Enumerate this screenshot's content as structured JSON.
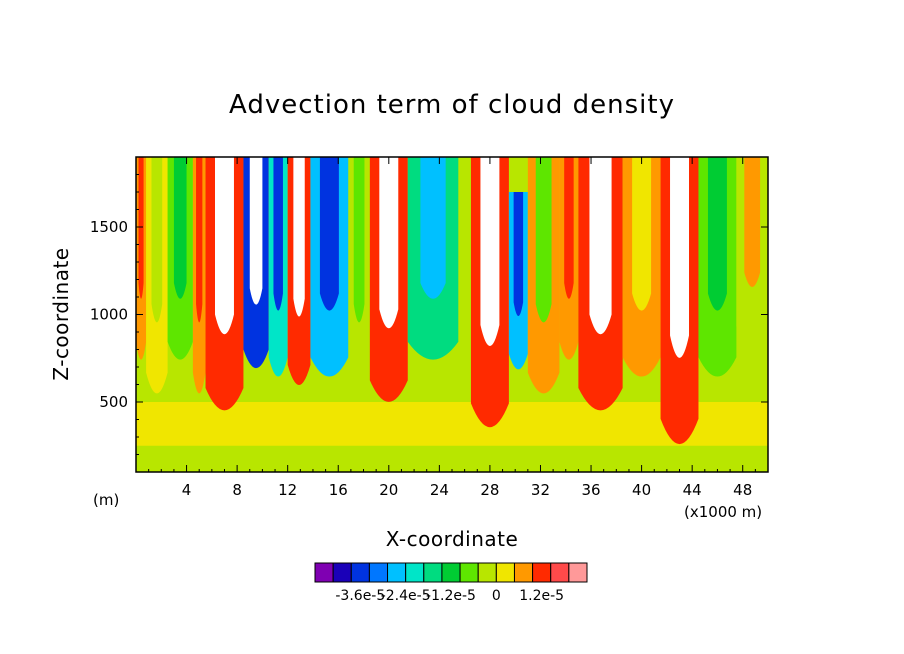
{
  "chart_data": {
    "type": "heatmap",
    "title": "Advection term of cloud density",
    "xlabel": "X-coordinate",
    "ylabel": "Z-coordinate",
    "x_unit_left": "(m)",
    "x_unit_right": "(x1000 m)",
    "xlim": [
      0,
      50
    ],
    "ylim": [
      100,
      1900
    ],
    "x_ticks": [
      4,
      8,
      12,
      16,
      20,
      24,
      28,
      32,
      36,
      40,
      44,
      48
    ],
    "x_tick_labels": [
      "4",
      "8",
      "12",
      "16",
      "20",
      "24",
      "28",
      "32",
      "36",
      "40",
      "44",
      "48"
    ],
    "y_ticks": [
      500,
      1000,
      1500
    ],
    "y_tick_labels": [
      "500",
      "1000",
      "1500"
    ],
    "colorbar": {
      "colors": [
        "#7f00b2",
        "#1a00b8",
        "#0033e0",
        "#0077ff",
        "#00c0ff",
        "#00e5c8",
        "#00dc80",
        "#00cc33",
        "#5ee600",
        "#b8e600",
        "#f0e600",
        "#ff9900",
        "#ff2a00",
        "#ff4a4a",
        "#ff9999"
      ],
      "labels": [
        "-3.6e-5",
        "-2.4e-5",
        "-1.2e-5",
        "0",
        "1.2e-5"
      ],
      "label_values": [
        -3.6e-05,
        -2.4e-05,
        -1.2e-05,
        0,
        1.2e-05
      ],
      "min": -4.8e-05,
      "max": 2.4e-05
    },
    "columns": [
      {
        "x": [
          0,
          0.8
        ],
        "color": "#ff9900",
        "core": "#ff2a00",
        "z_top": 1900,
        "z_bottom": 700
      },
      {
        "x": [
          0.8,
          2.5
        ],
        "color": "#f0e600",
        "core": "#b8e600",
        "z_top": 1900,
        "z_bottom": 500
      },
      {
        "x": [
          2.5,
          4.5
        ],
        "color": "#5ee600",
        "core": "#00cc33",
        "z_top": 1900,
        "z_bottom": 700
      },
      {
        "x": [
          4.5,
          5.5
        ],
        "color": "#ff9900",
        "core": "#ff2a00",
        "z_top": 1900,
        "z_bottom": 500
      },
      {
        "x": [
          5.5,
          8.5
        ],
        "color": "#ff2a00",
        "core": "#ffffff",
        "z_top": 1900,
        "z_bottom": 400
      },
      {
        "x": [
          8.5,
          10.5
        ],
        "color": "#0033e0",
        "core": "#ffffff",
        "z_top": 1900,
        "z_bottom": 650
      },
      {
        "x": [
          10.5,
          12.0
        ],
        "color": "#00e5c8",
        "core": "#0033e0",
        "z_top": 1900,
        "z_bottom": 600
      },
      {
        "x": [
          12.0,
          13.8
        ],
        "color": "#ff2a00",
        "core": "#ffffff",
        "z_top": 1900,
        "z_bottom": 550
      },
      {
        "x": [
          13.8,
          16.8
        ],
        "color": "#00c0ff",
        "core": "#0033e0",
        "z_top": 1900,
        "z_bottom": 600
      },
      {
        "x": [
          16.8,
          18.5
        ],
        "color": "#b8e600",
        "core": "#5ee600",
        "z_top": 1900,
        "z_bottom": 500
      },
      {
        "x": [
          18.5,
          21.5
        ],
        "color": "#ff2a00",
        "core": "#ffffff",
        "z_top": 1900,
        "z_bottom": 450
      },
      {
        "x": [
          21.5,
          25.5
        ],
        "color": "#00dc80",
        "core": "#00c0ff",
        "z_top": 1900,
        "z_bottom": 700
      },
      {
        "x": [
          26.5,
          29.5
        ],
        "color": "#ff2a00",
        "core": "#ffffff",
        "z_top": 1900,
        "z_bottom": 300
      },
      {
        "x": [
          29.5,
          31.0
        ],
        "color": "#00c0ff",
        "core": "#0033e0",
        "z_top": 1700,
        "z_bottom": 650
      },
      {
        "x": [
          31.0,
          33.5
        ],
        "color": "#ff9900",
        "core": "#5ee600",
        "z_top": 1900,
        "z_bottom": 500
      },
      {
        "x": [
          33.5,
          35.0
        ],
        "color": "#ff9900",
        "core": "#ff2a00",
        "z_top": 1900,
        "z_bottom": 700
      },
      {
        "x": [
          35.0,
          38.5
        ],
        "color": "#ff2a00",
        "core": "#ffffff",
        "z_top": 1900,
        "z_bottom": 400
      },
      {
        "x": [
          38.5,
          41.5
        ],
        "color": "#ff9900",
        "core": "#f0e600",
        "z_top": 1900,
        "z_bottom": 600
      },
      {
        "x": [
          41.5,
          44.5
        ],
        "color": "#ff2a00",
        "core": "#ffffff",
        "z_top": 1900,
        "z_bottom": 200
      },
      {
        "x": [
          44.5,
          47.5
        ],
        "color": "#5ee600",
        "core": "#00cc33",
        "z_top": 1900,
        "z_bottom": 600
      },
      {
        "x": [
          47.5,
          50.0
        ],
        "color": "#b8e600",
        "core": "#ff9900",
        "z_top": 1900,
        "z_bottom": 800
      }
    ],
    "background_low": "#b8e600",
    "background_band": "#f0e600"
  }
}
